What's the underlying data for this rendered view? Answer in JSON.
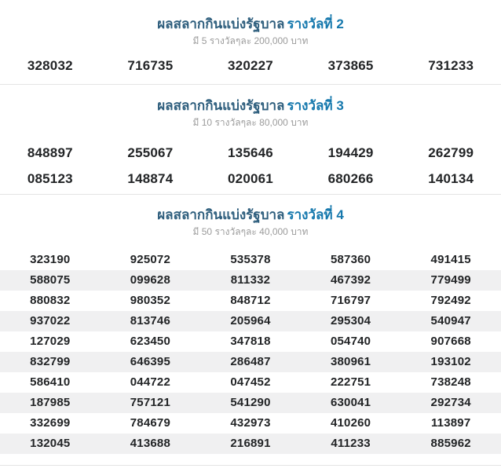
{
  "page": {
    "background": "#ffffff",
    "divider_color": "#e4e4e4",
    "stripe_color": "#f0f0f1",
    "title_color": "#2e5e7d",
    "title_accent_color": "#1578ad",
    "subtitle_color": "#9b9b9b",
    "number_color": "#222426"
  },
  "sections": [
    {
      "title": "ผลสลากกินแบ่งรัฐบาล",
      "title_bold": "รางวัลที่ 2",
      "subtitle": "มี 5 รางวัลๆละ 200,000 บาท",
      "rows": [
        [
          "328032",
          "716735",
          "320227",
          "373865",
          "731233"
        ]
      ]
    },
    {
      "title": "ผลสลากกินแบ่งรัฐบาล",
      "title_bold": "รางวัลที่ 3",
      "subtitle": "มี 10 รางวัลๆละ 80,000 บาท",
      "rows": [
        [
          "848897",
          "255067",
          "135646",
          "194429",
          "262799"
        ],
        [
          "085123",
          "148874",
          "020061",
          "680266",
          "140134"
        ]
      ]
    },
    {
      "title": "ผลสลากกินแบ่งรัฐบาล",
      "title_bold": "รางวัลที่ 4",
      "subtitle": "มี 50 รางวัลๆละ 40,000 บาท",
      "rows": [
        [
          "323190",
          "925072",
          "535378",
          "587360",
          "491415"
        ],
        [
          "588075",
          "099628",
          "811332",
          "467392",
          "779499"
        ],
        [
          "880832",
          "980352",
          "848712",
          "716797",
          "792492"
        ],
        [
          "937022",
          "813746",
          "205964",
          "295304",
          "540947"
        ],
        [
          "127029",
          "623450",
          "347818",
          "054740",
          "907668"
        ],
        [
          "832799",
          "646395",
          "286487",
          "380961",
          "193102"
        ],
        [
          "586410",
          "044722",
          "047452",
          "222751",
          "738248"
        ],
        [
          "187985",
          "757121",
          "541290",
          "630041",
          "292734"
        ],
        [
          "332699",
          "784679",
          "432973",
          "410260",
          "113897"
        ],
        [
          "132045",
          "413688",
          "216891",
          "411233",
          "885962"
        ]
      ]
    }
  ]
}
